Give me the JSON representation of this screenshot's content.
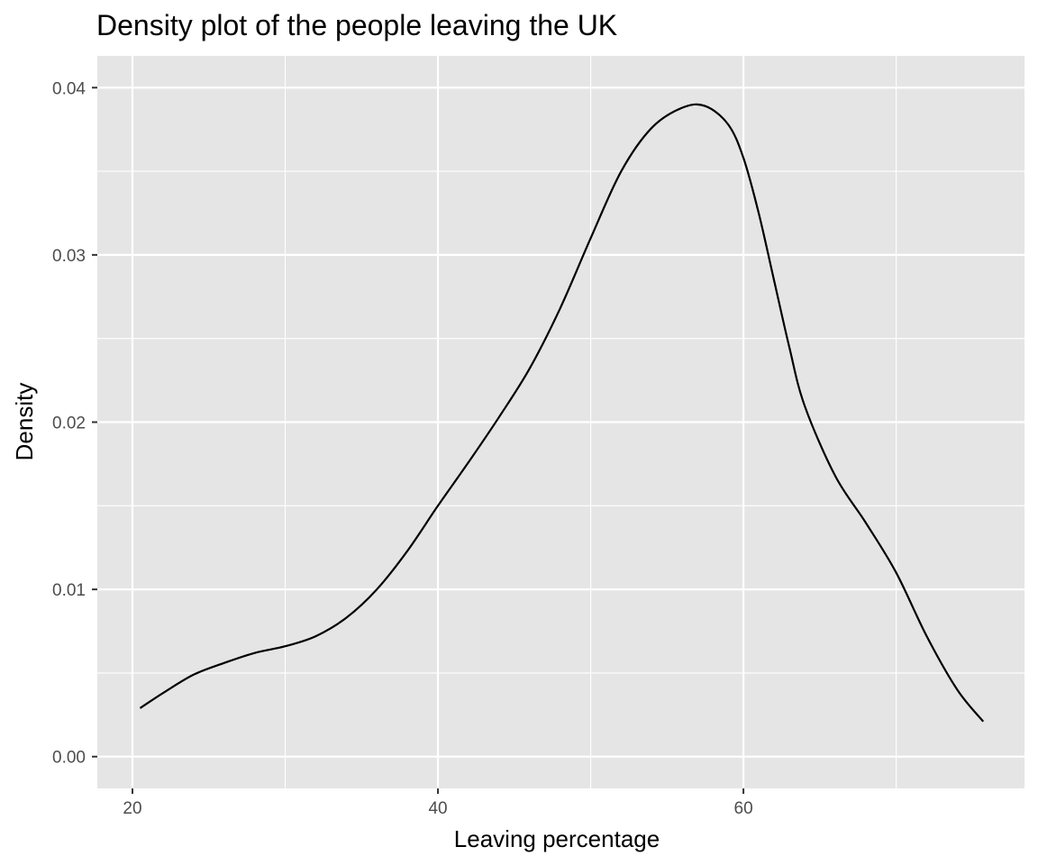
{
  "chart_data": {
    "type": "line",
    "title": "Density plot of the people leaving the UK",
    "xlabel": "Leaving percentage",
    "ylabel": "Density",
    "xlim": [
      17.7,
      78.4
    ],
    "ylim": [
      -0.0019,
      0.0419
    ],
    "x_ticks": [
      20,
      40,
      60
    ],
    "x_tick_labels": [
      "20",
      "40",
      "60"
    ],
    "y_ticks": [
      0.0,
      0.01,
      0.02,
      0.03,
      0.04
    ],
    "y_tick_labels": [
      "0.00",
      "0.01",
      "0.02",
      "0.03",
      "0.04"
    ],
    "grid": true,
    "legend": "none",
    "series": [
      {
        "x": [
          20.5,
          22,
          24,
          26,
          28,
          30,
          32,
          34,
          36,
          38,
          40,
          42,
          44,
          46,
          48,
          50,
          52,
          54,
          56,
          57.5,
          59,
          60,
          61,
          62,
          63,
          64,
          66,
          68,
          70,
          72,
          74,
          75.7
        ],
        "y": [
          0.0029,
          0.0038,
          0.0049,
          0.0056,
          0.0062,
          0.0066,
          0.0072,
          0.0083,
          0.01,
          0.0123,
          0.015,
          0.0176,
          0.0203,
          0.0232,
          0.0268,
          0.031,
          0.035,
          0.0376,
          0.0388,
          0.0389,
          0.0378,
          0.0358,
          0.0325,
          0.0285,
          0.0245,
          0.021,
          0.0168,
          0.014,
          0.011,
          0.0072,
          0.004,
          0.0021
        ]
      }
    ]
  },
  "colors": {
    "panel_background": "#e5e5e5",
    "grid": "#ffffff",
    "line": "#000000",
    "tick_text": "#4d4d4d"
  }
}
